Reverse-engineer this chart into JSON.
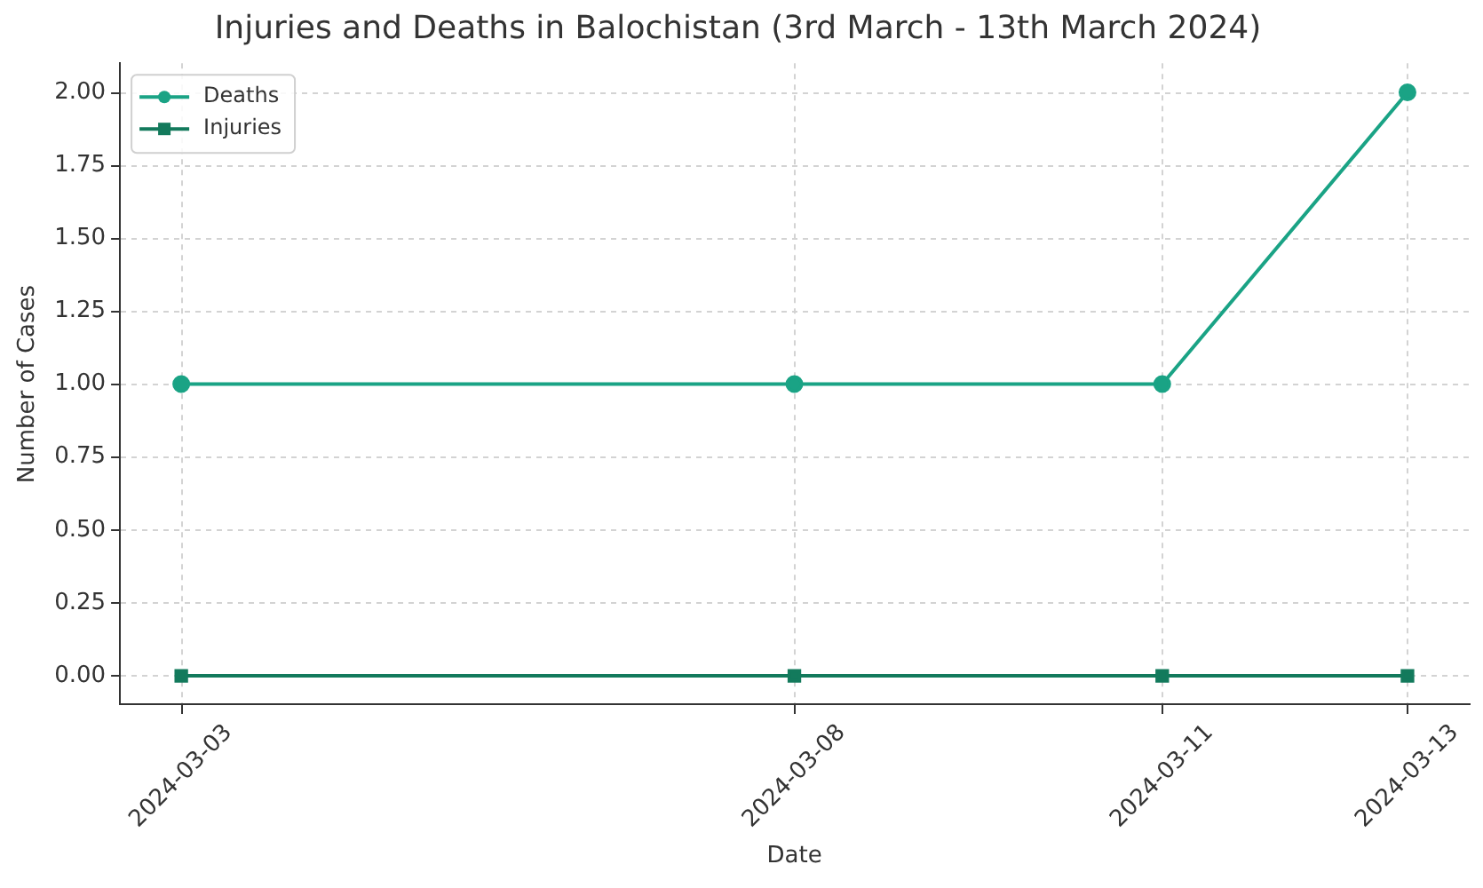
{
  "chart_data": {
    "type": "line",
    "title": "Injuries and Deaths in Balochistan (3rd March - 13th March 2024)",
    "xlabel": "Date",
    "ylabel": "Number of Cases",
    "x": [
      "2024-03-03",
      "2024-03-08",
      "2024-03-11",
      "2024-03-13"
    ],
    "series": [
      {
        "name": "Deaths",
        "color": "#1aa385",
        "values": [
          1,
          1,
          1,
          2
        ],
        "marker": "circle"
      },
      {
        "name": "Injuries",
        "color": "#137a5c",
        "values": [
          0,
          0,
          0,
          0
        ],
        "marker": "square"
      }
    ],
    "xlim": [
      "2024-03-02T12:00",
      "2024-03-13T12:00"
    ],
    "xticks": [
      "2024-03-03",
      "2024-03-08",
      "2024-03-11",
      "2024-03-13"
    ],
    "ylim": [
      -0.1,
      2.1
    ],
    "yticks": [
      {
        "value": 0,
        "label": "0.00"
      },
      {
        "value": 0.25,
        "label": "0.25"
      },
      {
        "value": 0.5,
        "label": "0.50"
      },
      {
        "value": 0.75,
        "label": "0.75"
      },
      {
        "value": 1,
        "label": "1.00"
      },
      {
        "value": 1.25,
        "label": "1.25"
      },
      {
        "value": 1.5,
        "label": "1.50"
      },
      {
        "value": 1.75,
        "label": "1.75"
      },
      {
        "value": 2,
        "label": "2.00"
      }
    ],
    "grid": true,
    "legend": "top left",
    "line_style": "solid"
  }
}
